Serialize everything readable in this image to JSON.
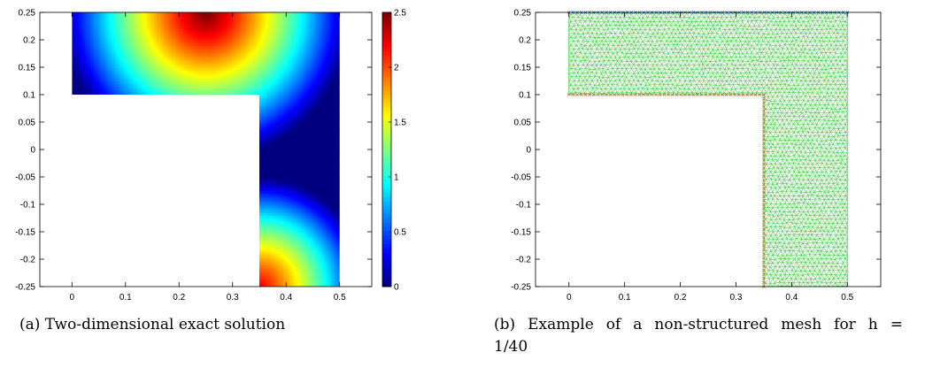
{
  "chart_data": [
    {
      "type": "heatmap",
      "title": "",
      "xlabel": "",
      "ylabel": "",
      "xlim": [
        -0.06,
        0.56
      ],
      "ylim": [
        -0.25,
        0.25
      ],
      "x_ticks": [
        "0",
        "0.1",
        "0.2",
        "0.3",
        "0.4",
        "0.5"
      ],
      "x_tick_values": [
        0,
        0.1,
        0.2,
        0.3,
        0.4,
        0.5
      ],
      "y_ticks": [
        "0.25",
        "0.2",
        "0.15",
        "0.1",
        "0.05",
        "0",
        "-0.05",
        "-0.1",
        "-0.15",
        "-0.2",
        "-0.25"
      ],
      "y_tick_values": [
        0.25,
        0.2,
        0.15,
        0.1,
        0.05,
        0,
        -0.05,
        -0.1,
        -0.15,
        -0.2,
        -0.25
      ],
      "colorbar": {
        "range": [
          0,
          2.5
        ],
        "ticks": [
          "2.5",
          "2",
          "1.5",
          "1",
          "0.5",
          "0"
        ],
        "tick_values": [
          2.5,
          2,
          1.5,
          1,
          0.5,
          0
        ],
        "colormap": "jet"
      },
      "domain_polygon": [
        [
          0,
          0.1
        ],
        [
          0,
          0.25
        ],
        [
          0.5,
          0.25
        ],
        [
          0.5,
          -0.25
        ],
        [
          0.35,
          -0.25
        ],
        [
          0.35,
          0.1
        ]
      ],
      "field_peaks": [
        {
          "x": 0.25,
          "y": 0.25,
          "value": 2.5
        },
        {
          "x": 0.35,
          "y": -0.25,
          "value": 2.2
        }
      ],
      "field_min": 0,
      "caption": "(a) Two-dimensional exact solution"
    },
    {
      "type": "scatter",
      "title": "",
      "xlabel": "",
      "ylabel": "",
      "xlim": [
        -0.06,
        0.56
      ],
      "ylim": [
        -0.25,
        0.25
      ],
      "x_ticks": [
        "0",
        "0.1",
        "0.2",
        "0.3",
        "0.4",
        "0.5"
      ],
      "x_tick_values": [
        0,
        0.1,
        0.2,
        0.3,
        0.4,
        0.5
      ],
      "y_ticks": [
        "0.25",
        "0.2",
        "0.15",
        "0.1",
        "0.05",
        "0",
        "-0.05",
        "-0.1",
        "-0.15",
        "-0.2",
        "-0.25"
      ],
      "y_tick_values": [
        0.25,
        0.2,
        0.15,
        0.1,
        0.05,
        0,
        -0.05,
        -0.1,
        -0.15,
        -0.2,
        -0.25
      ],
      "mesh_h": 0.025,
      "domain_polygon": [
        [
          0,
          0.1
        ],
        [
          0,
          0.25
        ],
        [
          0.5,
          0.25
        ],
        [
          0.5,
          -0.25
        ],
        [
          0.35,
          -0.25
        ],
        [
          0.35,
          0.1
        ]
      ],
      "boundary_sets": [
        {
          "segment": [
            [
              0,
              0.25
            ],
            [
              0.5,
              0.25
            ]
          ],
          "color": "#3b7fd9",
          "marker": "x"
        },
        {
          "segment": [
            [
              0,
              0.1
            ],
            [
              0.35,
              0.1
            ]
          ],
          "color": "#d9673b",
          "marker": "x"
        },
        {
          "segment": [
            [
              0.35,
              0.1
            ],
            [
              0.35,
              -0.25
            ]
          ],
          "color": "#d9673b",
          "marker": "x"
        }
      ],
      "mesh_color": "#3fcf3f",
      "caption_main": "(b) Example of a non-structured mesh for h =",
      "caption_cont": "1/40"
    }
  ]
}
